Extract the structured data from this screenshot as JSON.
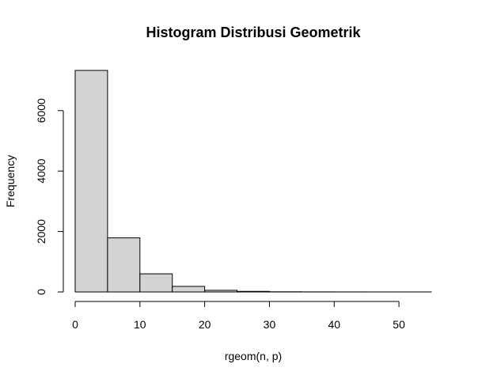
{
  "chart_data": {
    "type": "bar",
    "title": "Histogram Distribusi Geometrik",
    "xlabel": "rgeom(n, p)",
    "ylabel": "Frequency",
    "bin_edges": [
      0,
      5,
      10,
      15,
      20,
      25,
      30,
      35,
      40,
      45,
      50,
      55
    ],
    "values": [
      7330,
      1790,
      600,
      185,
      55,
      20,
      6,
      3,
      2,
      1,
      1
    ],
    "xlim": [
      0,
      55
    ],
    "ylim": [
      0,
      7330
    ],
    "x_ticks": [
      0,
      10,
      20,
      30,
      40,
      50
    ],
    "y_ticks": [
      0,
      2000,
      4000,
      6000
    ],
    "x_tick_labels": [
      "0",
      "10",
      "20",
      "30",
      "40",
      "50"
    ],
    "y_tick_labels": [
      "0",
      "2000",
      "4000",
      "6000"
    ],
    "bar_color": "#d3d3d3",
    "edge_color": "#000000",
    "grid": false,
    "legend": "none"
  }
}
